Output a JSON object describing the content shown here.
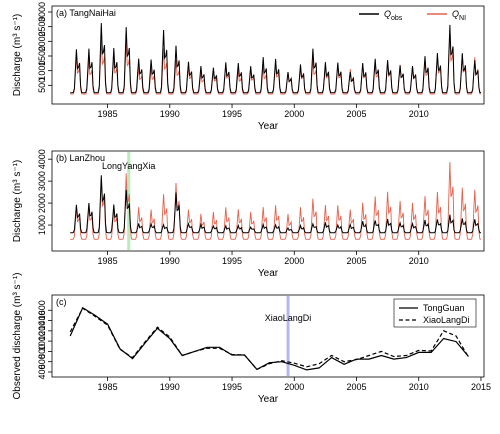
{
  "chart_data": [
    {
      "type": "line",
      "panel_label": "(a) TangNaiHai",
      "xlabel": "Year",
      "ylabel": "Discharge (m³ s⁻¹)",
      "xlim": [
        1981.5,
        2014.6
      ],
      "ylim": [
        0,
        3000
      ],
      "xticks": [
        1985,
        1990,
        1995,
        2000,
        2005,
        2010
      ],
      "yticks": [
        500,
        1000,
        1500,
        2000,
        2500,
        3000
      ],
      "legend": {
        "position": "top-right",
        "ncol": 2
      },
      "series": [
        {
          "name": "Q",
          "name_sub": "obs",
          "color": "#000000",
          "peaks": [
            1720,
            1750,
            2620,
            1760,
            2480,
            1400,
            1380,
            2380,
            1840,
            1300,
            1150,
            1100,
            1280,
            1250,
            1150,
            1450,
            1400,
            950,
            1200,
            1750,
            1280,
            1280,
            950,
            1250,
            1400,
            1350,
            1180,
            1150,
            1480,
            1600,
            2550,
            1600,
            1350
          ],
          "base": 250
        },
        {
          "name": "Q",
          "name_sub": "NI",
          "color": "#e8604c",
          "peaks": [
            1500,
            1400,
            2050,
            1500,
            1950,
            1100,
            1100,
            1750,
            1350,
            1150,
            950,
            1000,
            1200,
            1000,
            1050,
            1150,
            1250,
            950,
            1150,
            1400,
            1200,
            1200,
            1050,
            1200,
            1250,
            1300,
            1200,
            1150,
            1350,
            1500,
            2250,
            1550,
            1450
          ],
          "base": 200
        }
      ]
    },
    {
      "type": "line",
      "panel_label": "(b) LanZhou",
      "xlabel": "Year",
      "ylabel": "Discharge (m³ s⁻¹)",
      "xlim": [
        1981.5,
        2014.6
      ],
      "ylim": [
        0,
        4100
      ],
      "xticks": [
        1985,
        1990,
        1995,
        2000,
        2005,
        2010
      ],
      "yticks": [
        1000,
        2000,
        3000,
        4000
      ],
      "annotations": [
        {
          "text": "LongYangXia",
          "x": 1986.7,
          "line_color": "#b9ecb9"
        }
      ],
      "series": [
        {
          "name": "Qobs",
          "color": "#000000",
          "peaks": [
            1900,
            2000,
            3250,
            1900,
            2600,
            1050,
            1050,
            1000,
            2450,
            1050,
            1000,
            950,
            950,
            950,
            900,
            1000,
            1000,
            850,
            950,
            1050,
            1100,
            1000,
            1000,
            1150,
            1200,
            1250,
            1100,
            1050,
            1200,
            1250,
            1450,
            1300,
            1250
          ],
          "base": 650
        },
        {
          "name": "QNI",
          "color": "#e8604c",
          "peaks": [
            1800,
            1900,
            3100,
            1800,
            3350,
            1800,
            1700,
            2400,
            2900,
            1700,
            1500,
            1600,
            1800,
            1700,
            1600,
            1800,
            1900,
            1500,
            1800,
            2200,
            1900,
            1900,
            1700,
            2000,
            2300,
            2500,
            2100,
            2000,
            2300,
            2500,
            3850,
            2700,
            2600
          ],
          "base": 350
        }
      ]
    },
    {
      "type": "line",
      "panel_label": "(c)",
      "xlabel": "Year",
      "ylabel": "Observed discharge (m³ s⁻¹)",
      "xlim": [
        1981.5,
        2014.6
      ],
      "ylim": [
        380,
        1780
      ],
      "xticks": [
        1985,
        1990,
        1995,
        2000,
        2005,
        2010,
        2015
      ],
      "yticks": [
        400,
        600,
        800,
        1000,
        1200,
        1400,
        1600
      ],
      "legend": {
        "position": "top-right"
      },
      "annotations": [
        {
          "text": "XiaoLangDi",
          "x": 1999.5,
          "line_color": "#b3b8f5"
        }
      ],
      "x": [
        1982,
        1983,
        1984,
        1985,
        1986,
        1987,
        1988,
        1989,
        1990,
        1991,
        1992,
        1993,
        1994,
        1995,
        1996,
        1997,
        1998,
        1999,
        2000,
        2001,
        2002,
        2003,
        2004,
        2005,
        2006,
        2007,
        2008,
        2009,
        2010,
        2011,
        2012,
        2013,
        2014
      ],
      "series": [
        {
          "name": "TongGuan",
          "style": "solid",
          "values": [
            1100,
            1650,
            1500,
            1330,
            850,
            660,
            960,
            1250,
            1050,
            720,
            800,
            880,
            880,
            730,
            730,
            450,
            580,
            600,
            530,
            440,
            480,
            680,
            550,
            650,
            650,
            720,
            650,
            680,
            780,
            780,
            1050,
            990,
            700
          ]
        },
        {
          "name": "XiaoLangDi",
          "style": "dashed",
          "values": [
            1180,
            1640,
            1480,
            1310,
            840,
            680,
            980,
            1270,
            1080,
            720,
            800,
            860,
            860,
            740,
            730,
            450,
            560,
            620,
            570,
            500,
            560,
            720,
            600,
            640,
            720,
            800,
            700,
            720,
            820,
            810,
            1200,
            1100,
            690
          ]
        }
      ]
    }
  ]
}
